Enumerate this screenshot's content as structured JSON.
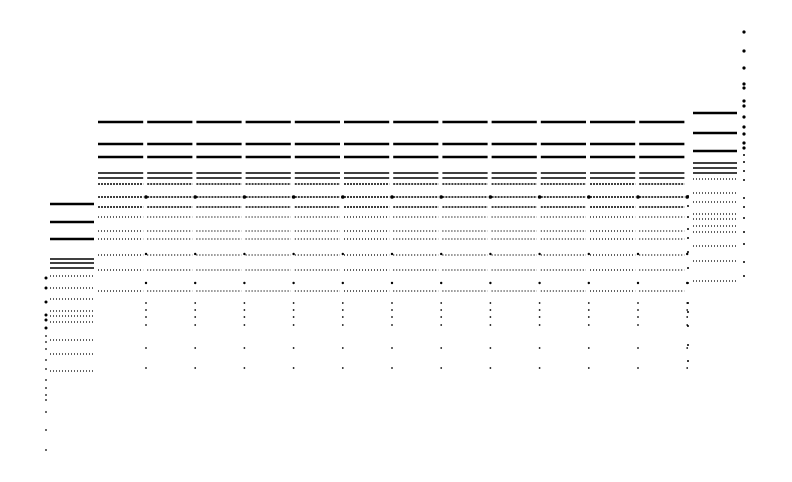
{
  "scene": {
    "description_colors": {
      "ink": "#000000",
      "background": "#ffffff"
    }
  }
}
